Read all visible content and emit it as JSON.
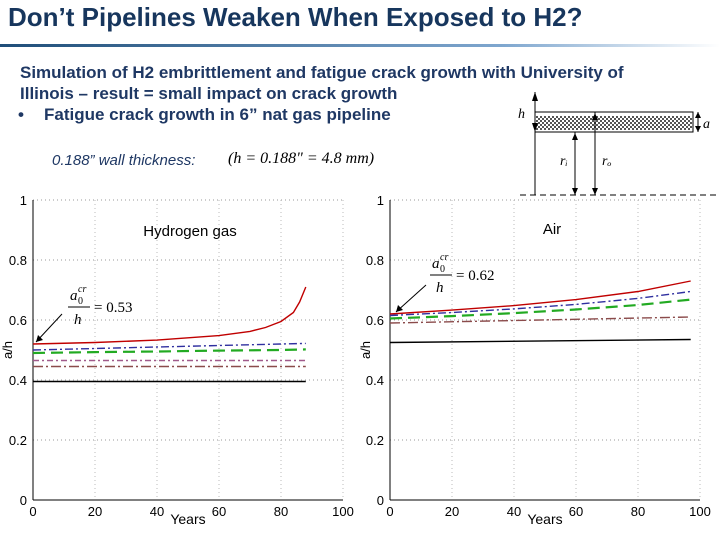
{
  "slide": {
    "title": "Don’t Pipelines Weaken When Exposed to H2?",
    "line1": "Simulation of H2 embrittlement and fatigue crack growth with University of",
    "line2": "Illinois – result = small impact on crack growth",
    "bullet_char": "•",
    "bullet": "Fatigue crack growth in 6” nat gas pipeline",
    "thickness_label": "0.188” wall thickness:",
    "thickness_formula": "(h = 0.188\" = 4.8 mm)"
  },
  "diagram": {
    "h": "h",
    "a": "a",
    "ri": "rᵢ",
    "ro": "rₒ"
  },
  "chart_data": [
    {
      "type": "line",
      "title": "Hydrogen gas",
      "xlabel": "Years",
      "ylabel": "a/h",
      "xlim": [
        0,
        100
      ],
      "ylim": [
        0,
        1
      ],
      "xticks": [
        "0",
        "20",
        "40",
        "60",
        "80",
        "100"
      ],
      "yticks": [
        "0",
        "0.2",
        "0.4",
        "0.6",
        "0.8",
        "1"
      ],
      "annotation": "a0cr/h = 0.53",
      "annotation_parts": {
        "num": "a",
        "sub": "0",
        "sup": "cr",
        "den": "h",
        "value": "= 0.53"
      },
      "series": [
        {
          "name": "red",
          "color": "#c00000",
          "dash": "",
          "x": [
            0,
            20,
            40,
            60,
            70,
            75,
            80,
            84,
            86,
            88
          ],
          "y": [
            0.52,
            0.525,
            0.533,
            0.548,
            0.562,
            0.575,
            0.595,
            0.625,
            0.66,
            0.71
          ]
        },
        {
          "name": "blue",
          "color": "#2f2f9f",
          "dash": "8,3,2,3",
          "x": [
            0,
            20,
            40,
            60,
            80,
            88
          ],
          "y": [
            0.5,
            0.505,
            0.51,
            0.515,
            0.52,
            0.522
          ]
        },
        {
          "name": "green",
          "color": "#22aa22",
          "dash": "12,6",
          "x": [
            0,
            20,
            40,
            60,
            80,
            88
          ],
          "y": [
            0.49,
            0.493,
            0.495,
            0.498,
            0.5,
            0.502
          ]
        },
        {
          "name": "purple",
          "color": "#a05a8a",
          "dash": "6,3,2,3",
          "x": [
            0,
            88
          ],
          "y": [
            0.465,
            0.465
          ]
        },
        {
          "name": "brown",
          "color": "#8b4b4b",
          "dash": "10,3,2,3",
          "x": [
            0,
            88
          ],
          "y": [
            0.445,
            0.445
          ]
        },
        {
          "name": "black",
          "color": "#000000",
          "dash": "",
          "x": [
            0,
            88
          ],
          "y": [
            0.395,
            0.395
          ]
        }
      ]
    },
    {
      "type": "line",
      "title": "Air",
      "xlabel": "Years",
      "ylabel": "a/h",
      "xlim": [
        0,
        100
      ],
      "ylim": [
        0,
        1
      ],
      "xticks": [
        "0",
        "20",
        "40",
        "60",
        "80",
        "100"
      ],
      "yticks": [
        "0",
        "0.2",
        "0.4",
        "0.6",
        "0.8",
        "1"
      ],
      "annotation": "a0cr/h = 0.62",
      "annotation_parts": {
        "num": "a",
        "sub": "0",
        "sup": "cr",
        "den": "h",
        "value": "= 0.62"
      },
      "series": [
        {
          "name": "red",
          "color": "#c00000",
          "dash": "",
          "x": [
            0,
            20,
            40,
            60,
            80,
            97
          ],
          "y": [
            0.62,
            0.633,
            0.648,
            0.668,
            0.695,
            0.73
          ]
        },
        {
          "name": "blue",
          "color": "#2f2f9f",
          "dash": "8,3,2,3",
          "x": [
            0,
            20,
            40,
            60,
            80,
            97
          ],
          "y": [
            0.615,
            0.625,
            0.637,
            0.652,
            0.672,
            0.695
          ]
        },
        {
          "name": "green",
          "color": "#22aa22",
          "dash": "12,6",
          "x": [
            0,
            20,
            40,
            60,
            80,
            97
          ],
          "y": [
            0.605,
            0.613,
            0.623,
            0.635,
            0.65,
            0.668
          ]
        },
        {
          "name": "brown",
          "color": "#8b4b4b",
          "dash": "10,3,2,3",
          "x": [
            0,
            97
          ],
          "y": [
            0.59,
            0.61
          ]
        },
        {
          "name": "black",
          "color": "#000000",
          "dash": "",
          "x": [
            0,
            97
          ],
          "y": [
            0.525,
            0.535
          ]
        }
      ]
    }
  ]
}
